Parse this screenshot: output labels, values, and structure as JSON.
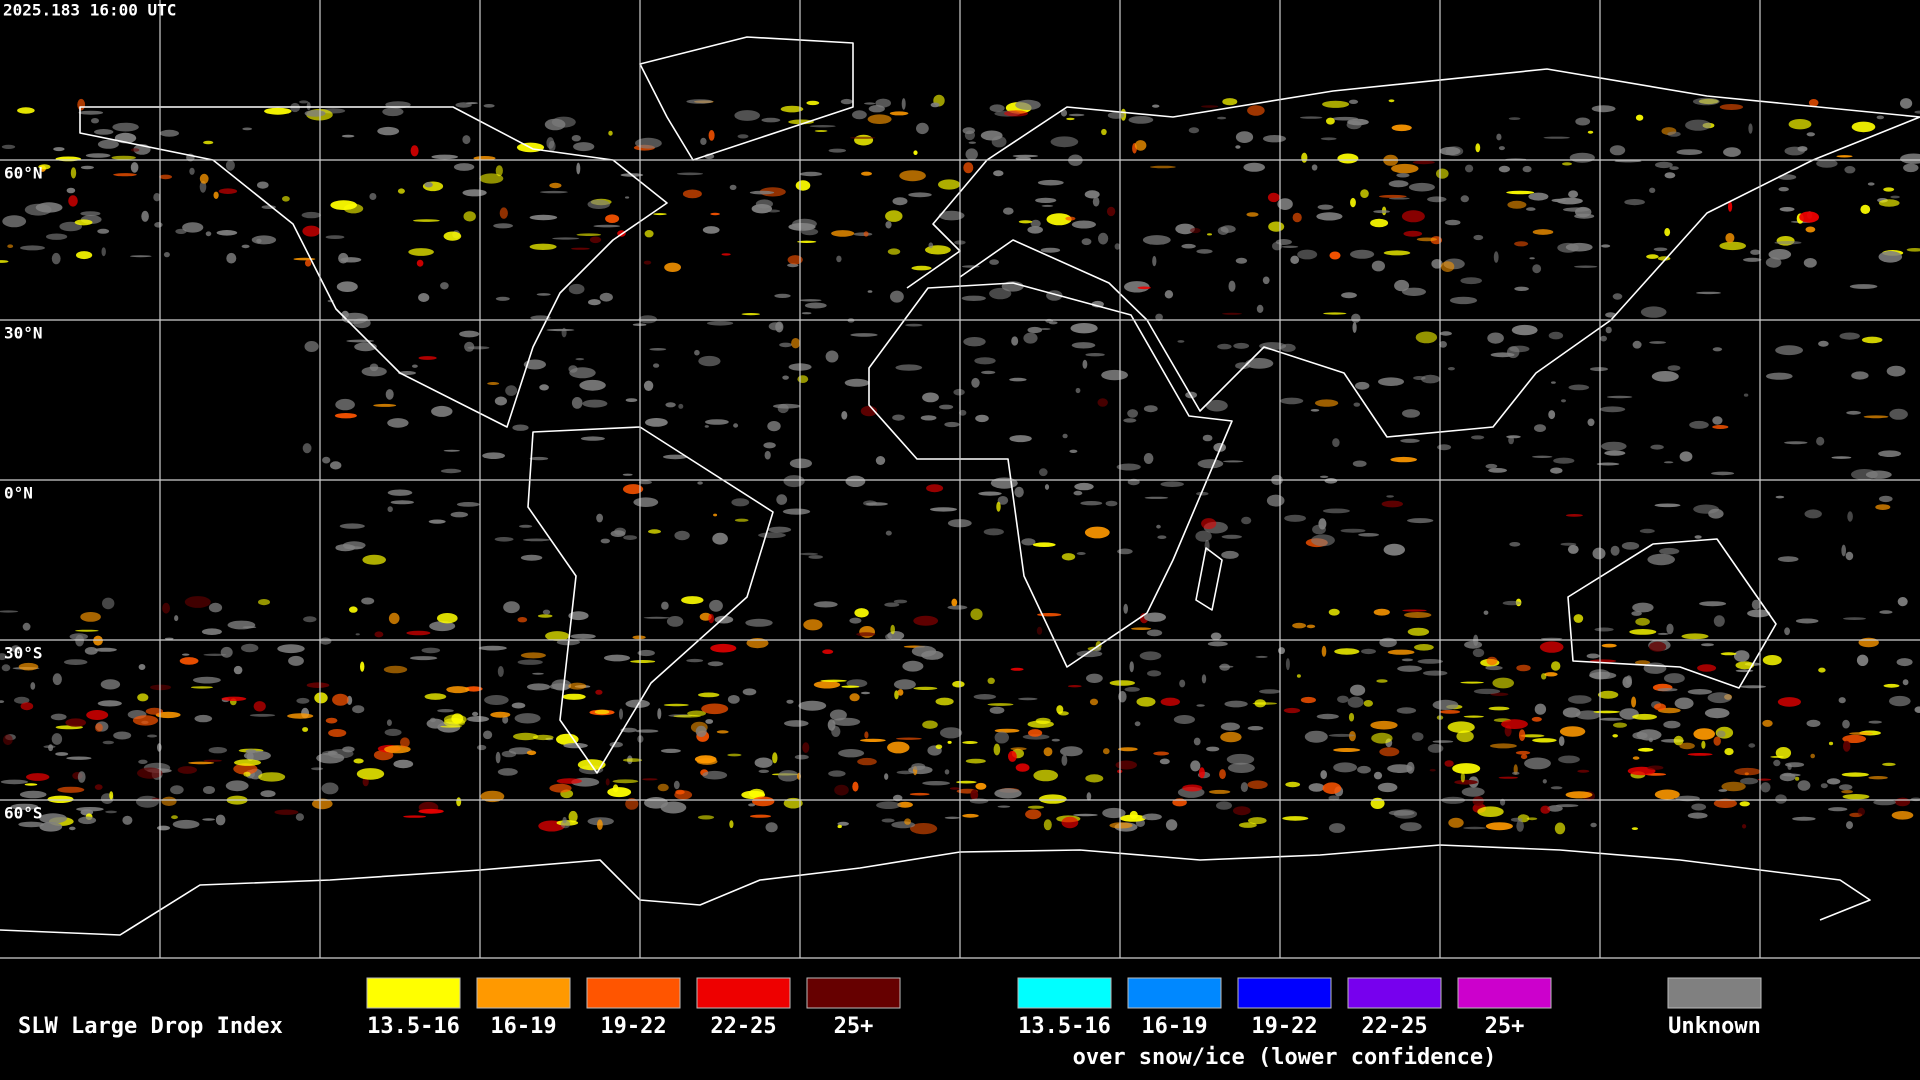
{
  "timestamp": "2025.183 16:00 UTC",
  "latitude_labels": [
    "60°N",
    "30°N",
    "0°N",
    "30°S",
    "60°S"
  ],
  "legend": {
    "title": "SLW Large Drop Index",
    "groups": [
      {
        "items": [
          {
            "label": "13.5-16",
            "color": "#ffff00"
          },
          {
            "label": "16-19",
            "color": "#ff9900"
          },
          {
            "label": "19-22",
            "color": "#ff5500"
          },
          {
            "label": "22-25",
            "color": "#ee0000"
          },
          {
            "label": "25+",
            "color": "#660000"
          }
        ]
      },
      {
        "items": [
          {
            "label": "13.5-16",
            "color": "#00ffff"
          },
          {
            "label": "16-19",
            "color": "#0088ff"
          },
          {
            "label": "19-22",
            "color": "#0000ff"
          },
          {
            "label": "22-25",
            "color": "#7700ee"
          },
          {
            "label": "25+",
            "color": "#cc00cc"
          }
        ],
        "caption": "over snow/ice (lower confidence)"
      },
      {
        "items": [
          {
            "label": "Unknown",
            "color": "#808080"
          }
        ]
      }
    ]
  }
}
